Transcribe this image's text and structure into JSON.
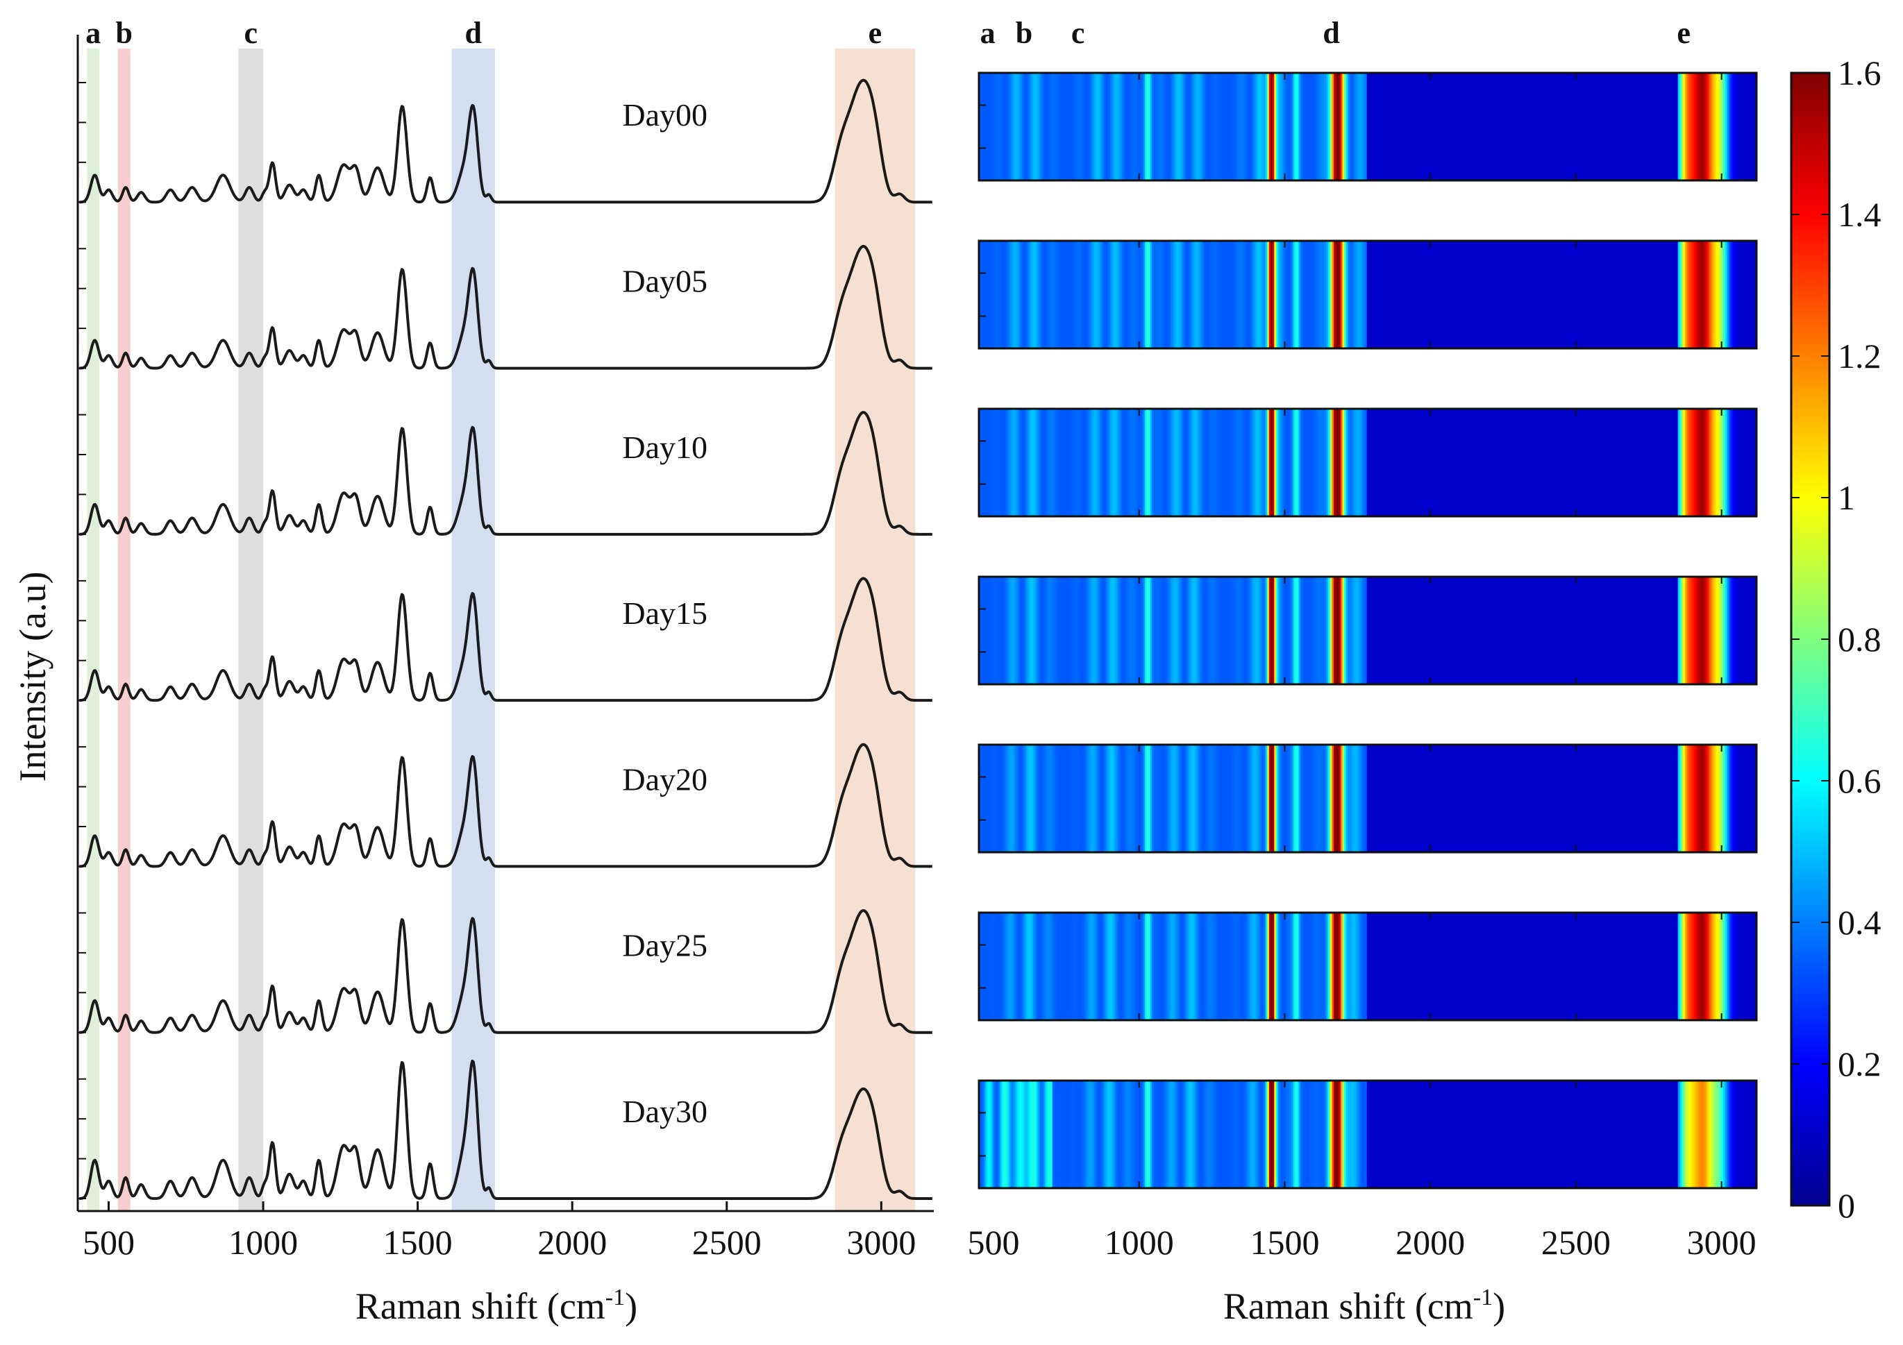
{
  "chart_data": [
    {
      "type": "line",
      "title": "",
      "xlabel": "Raman shift (cm",
      "xlabel_sup": "-1",
      "xlabel_close": ")",
      "ylabel": "Intensity (a.u)",
      "xlim": [
        400,
        3170
      ],
      "xticks": [
        500,
        1000,
        1500,
        2000,
        2500,
        3000
      ],
      "xtick_labels": [
        "500",
        "1000",
        "1500",
        "2000",
        "2500",
        "3000"
      ],
      "layout": "stacked offset spectra",
      "highlight_regions": [
        {
          "label": "a",
          "range": [
            430,
            470
          ],
          "color": "#d9ecd2"
        },
        {
          "label": "b",
          "range": [
            530,
            570
          ],
          "color": "#f7c4c4"
        },
        {
          "label": "c",
          "range": [
            920,
            1000
          ],
          "color": "#d8d8d8"
        },
        {
          "label": "d",
          "range": [
            1610,
            1750
          ],
          "color": "#ccd8ee"
        },
        {
          "label": "e",
          "range": [
            2850,
            3110
          ],
          "color": "#f6dac9"
        }
      ],
      "series": [
        {
          "name": "Day00",
          "scale": 1.0,
          "low_scale": 0.95
        },
        {
          "name": "Day05",
          "scale": 1.0,
          "low_scale": 0.98
        },
        {
          "name": "Day10",
          "scale": 1.0,
          "low_scale": 1.05
        },
        {
          "name": "Day15",
          "scale": 1.0,
          "low_scale": 1.05
        },
        {
          "name": "Day20",
          "scale": 1.0,
          "low_scale": 1.08
        },
        {
          "name": "Day25",
          "scale": 1.0,
          "low_scale": 1.12
        },
        {
          "name": "Day30",
          "scale": 0.9,
          "low_scale": 1.35
        }
      ],
      "peaks": [
        {
          "center": 455,
          "amplitude": 0.22,
          "width": 13
        },
        {
          "center": 500,
          "amplitude": 0.1,
          "width": 12
        },
        {
          "center": 555,
          "amplitude": 0.12,
          "width": 10
        },
        {
          "center": 605,
          "amplitude": 0.08,
          "width": 12
        },
        {
          "center": 700,
          "amplitude": 0.1,
          "width": 14
        },
        {
          "center": 770,
          "amplitude": 0.12,
          "width": 16
        },
        {
          "center": 870,
          "amplitude": 0.22,
          "width": 22
        },
        {
          "center": 955,
          "amplitude": 0.12,
          "width": 13
        },
        {
          "center": 1005,
          "amplitude": 0.08,
          "width": 9
        },
        {
          "center": 1030,
          "amplitude": 0.32,
          "width": 10
        },
        {
          "center": 1085,
          "amplitude": 0.14,
          "width": 15
        },
        {
          "center": 1130,
          "amplitude": 0.1,
          "width": 12
        },
        {
          "center": 1180,
          "amplitude": 0.22,
          "width": 10
        },
        {
          "center": 1260,
          "amplitude": 0.3,
          "width": 20
        },
        {
          "center": 1300,
          "amplitude": 0.25,
          "width": 14
        },
        {
          "center": 1370,
          "amplitude": 0.28,
          "width": 20
        },
        {
          "center": 1450,
          "amplitude": 0.78,
          "width": 15
        },
        {
          "center": 1540,
          "amplitude": 0.2,
          "width": 10
        },
        {
          "center": 1650,
          "amplitude": 0.25,
          "width": 20
        },
        {
          "center": 1680,
          "amplitude": 0.7,
          "width": 15
        },
        {
          "center": 1730,
          "amplitude": 0.06,
          "width": 8
        },
        {
          "center": 2870,
          "amplitude": 0.35,
          "width": 28
        },
        {
          "center": 2935,
          "amplitude": 0.85,
          "width": 36
        },
        {
          "center": 2980,
          "amplitude": 0.3,
          "width": 25
        },
        {
          "center": 3060,
          "amplitude": 0.06,
          "width": 15
        }
      ]
    },
    {
      "type": "heatmap",
      "title": "",
      "xlabel": "Raman shift (cm",
      "xlabel_sup": "-1",
      "xlabel_close": ")",
      "xlim": [
        450,
        3120
      ],
      "xticks": [
        500,
        1000,
        1500,
        2000,
        2500,
        3000
      ],
      "xtick_labels": [
        "500",
        "1000",
        "1500",
        "2000",
        "2500",
        "3000"
      ],
      "rows": [
        "Day00",
        "Day05",
        "Day10",
        "Day15",
        "Day20",
        "Day25",
        "Day30"
      ],
      "region_letters": [
        {
          "label": "a",
          "x": 480
        },
        {
          "label": "b",
          "x": 605
        },
        {
          "label": "c",
          "x": 790
        },
        {
          "label": "d",
          "x": 1660
        },
        {
          "label": "e",
          "x": 2870
        }
      ],
      "colormap": "jet",
      "colorbar": {
        "range": [
          0,
          1.6
        ],
        "ticks": [
          0,
          0.2,
          0.4,
          0.6,
          0.8,
          1,
          1.2,
          1.4,
          1.6
        ],
        "tick_labels": [
          "0",
          "0.2",
          "0.4",
          "0.6",
          "0.8",
          "1",
          "1.2",
          "1.4",
          "1.6"
        ]
      },
      "band_groups": [
        {
          "name": "fingerprint-stripes",
          "intensity_range": [
            0.2,
            0.55
          ]
        },
        {
          "name": "1440-1460",
          "peak_intensity": 1.45
        },
        {
          "name": "1650-1680",
          "peak_intensity": 1.35
        },
        {
          "name": "2850-3000",
          "peak_intensity": 1.5
        }
      ]
    }
  ]
}
